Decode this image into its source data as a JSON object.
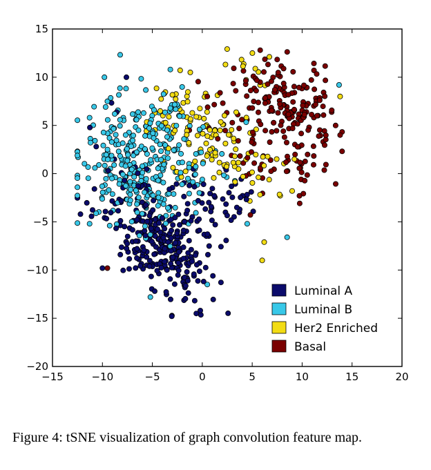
{
  "caption": "Figure 4: tSNE visualization of graph convolution feature map.",
  "chart_data": {
    "type": "scatter",
    "title": "",
    "xlabel": "",
    "ylabel": "",
    "xlim": [
      -15,
      20
    ],
    "ylim": [
      -20,
      15
    ],
    "xticks": [
      -15,
      -10,
      -5,
      0,
      5,
      10,
      15,
      20
    ],
    "yticks": [
      -20,
      -15,
      -10,
      -5,
      0,
      5,
      10,
      15
    ],
    "xtick_labels": [
      "−15",
      "−10",
      "−5",
      "0",
      "5",
      "10",
      "15",
      "20"
    ],
    "ytick_labels": [
      "−20",
      "−15",
      "−10",
      "−5",
      "0",
      "5",
      "10",
      "15"
    ],
    "grid": false,
    "legend_position": "lower-right",
    "series": [
      {
        "name": "Luminal A",
        "color": "#0b0b6b",
        "clusters": [
          {
            "cx": -4.5,
            "cy": -7.5,
            "sx": 1.8,
            "sy": 1.7,
            "n": 150
          },
          {
            "cx": -1.5,
            "cy": -10.5,
            "sx": 1.5,
            "sy": 2.0,
            "n": 55
          },
          {
            "cx": -6.0,
            "cy": -3.0,
            "sx": 2.5,
            "sy": 2.0,
            "n": 55
          },
          {
            "cx": 0.5,
            "cy": -4.0,
            "sx": 2.0,
            "sy": 2.0,
            "n": 45
          },
          {
            "cx": -9.5,
            "cy": 1.5,
            "sx": 1.5,
            "sy": 2.5,
            "n": 15
          },
          {
            "cx": 3.5,
            "cy": -3.5,
            "sx": 1.5,
            "sy": 1.5,
            "n": 15
          }
        ],
        "points": [
          [
            -0.2,
            -14.2
          ],
          [
            -0.6,
            -14.5
          ],
          [
            -7.6,
            10.0
          ],
          [
            -10.0,
            -9.8
          ],
          [
            -12.2,
            -4.2
          ]
        ]
      },
      {
        "name": "Luminal B",
        "color": "#38c8e8",
        "clusters": [
          {
            "cx": -7.0,
            "cy": 2.5,
            "sx": 2.8,
            "sy": 3.0,
            "n": 150
          },
          {
            "cx": -3.5,
            "cy": 3.5,
            "sx": 2.5,
            "sy": 2.3,
            "n": 60
          },
          {
            "cx": -8.0,
            "cy": -1.5,
            "sx": 2.8,
            "sy": 2.2,
            "n": 55
          },
          {
            "cx": -5.0,
            "cy": -3.0,
            "sx": 2.5,
            "sy": 2.5,
            "n": 40
          },
          {
            "cx": -1.0,
            "cy": 0.5,
            "sx": 2.0,
            "sy": 2.0,
            "n": 25
          }
        ],
        "points": [
          [
            -5.2,
            -12.8
          ],
          [
            0.5,
            -11.5
          ],
          [
            13.7,
            9.2
          ],
          [
            8.5,
            -6.6
          ],
          [
            4.5,
            -5.2
          ],
          [
            -9.5,
            7.5
          ],
          [
            -9.8,
            10.0
          ],
          [
            -3.2,
            10.8
          ]
        ]
      },
      {
        "name": "Her2 Enriched",
        "color": "#f2dc14",
        "clusters": [
          {
            "cx": 0.5,
            "cy": 4.0,
            "sx": 1.8,
            "sy": 2.3,
            "n": 60
          },
          {
            "cx": -3.5,
            "cy": 6.5,
            "sx": 2.0,
            "sy": 1.8,
            "n": 30
          },
          {
            "cx": 3.0,
            "cy": 1.0,
            "sx": 1.5,
            "sy": 2.0,
            "n": 25
          },
          {
            "cx": 4.5,
            "cy": 11.0,
            "sx": 1.2,
            "sy": 1.0,
            "n": 12
          },
          {
            "cx": 7.0,
            "cy": 0.0,
            "sx": 1.0,
            "sy": 1.5,
            "n": 8
          }
        ],
        "points": [
          [
            6.0,
            -9.0
          ],
          [
            6.2,
            -7.1
          ],
          [
            13.8,
            8.0
          ],
          [
            -1.2,
            10.5
          ],
          [
            9.0,
            -1.8
          ]
        ]
      },
      {
        "name": "Basal",
        "color": "#7a0000",
        "clusters": [
          {
            "cx": 9.5,
            "cy": 6.5,
            "sx": 2.0,
            "sy": 2.3,
            "n": 120
          },
          {
            "cx": 6.0,
            "cy": 8.5,
            "sx": 1.5,
            "sy": 2.0,
            "n": 40
          },
          {
            "cx": 9.5,
            "cy": 0.5,
            "sx": 1.8,
            "sy": 1.5,
            "n": 30
          },
          {
            "cx": 5.5,
            "cy": 2.0,
            "sx": 1.5,
            "sy": 2.0,
            "n": 20
          },
          {
            "cx": 1.5,
            "cy": 5.5,
            "sx": 1.2,
            "sy": 1.8,
            "n": 12
          }
        ],
        "points": [
          [
            -9.5,
            -9.8
          ],
          [
            13.8,
            4.0
          ],
          [
            5.8,
            12.8
          ],
          [
            0.5,
            8.0
          ],
          [
            -1.3,
            4.5
          ]
        ]
      }
    ]
  }
}
